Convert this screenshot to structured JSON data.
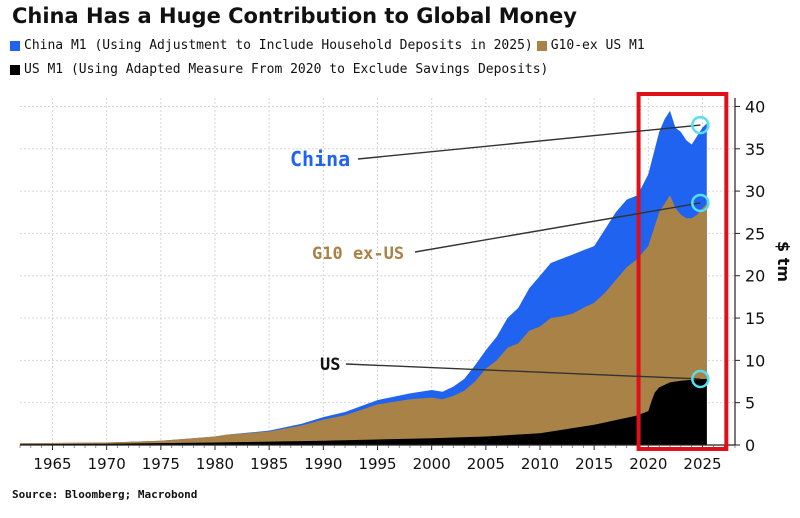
{
  "colors": {
    "china": "#1f63f0",
    "g10": "#a98248",
    "us": "#000000",
    "highlight": "#e0101a",
    "marker": "#55dff0"
  },
  "chart_data": {
    "type": "area",
    "title": "China Has a Huge Contribution to Global Money",
    "stacked": true,
    "xlim": [
      1962,
      2028
    ],
    "ylim": [
      0,
      41
    ],
    "ylabel": "$ tm",
    "x_ticks": [
      "1965",
      "1970",
      "1975",
      "1980",
      "1985",
      "1990",
      "1995",
      "2000",
      "2005",
      "2010",
      "2015",
      "2020",
      "2025"
    ],
    "y_ticks": [
      "0",
      "5",
      "10",
      "15",
      "20",
      "25",
      "30",
      "35",
      "40"
    ],
    "y_axis_side": "right",
    "grid": true,
    "legend_position": "top",
    "legend": [
      {
        "key": "china",
        "label": "China M1 (Using Adjustment to Include Household Deposits in 2025)"
      },
      {
        "key": "g10",
        "label": "G10-ex US M1"
      },
      {
        "key": "us",
        "label": "US M1 (Using Adapted Measure From 2020 to Exclude Savings Deposits)"
      }
    ],
    "series": [
      {
        "key": "us",
        "name": "US",
        "x": [
          1962,
          1970,
          1980,
          1990,
          2000,
          2005,
          2010,
          2015,
          2019,
          2020,
          2020.3,
          2020.6,
          2021,
          2022,
          2023,
          2024,
          2025,
          2025.4
        ],
        "cumulative": [
          0.1,
          0.15,
          0.3,
          0.5,
          0.8,
          1.0,
          1.4,
          2.4,
          3.5,
          4.0,
          5.2,
          6.2,
          6.8,
          7.4,
          7.6,
          7.7,
          7.8,
          7.8
        ]
      },
      {
        "key": "g10",
        "name": "G10 ex-US",
        "x": [
          1962,
          1970,
          1975,
          1978,
          1980,
          1981,
          1985,
          1988,
          1990,
          1992,
          1995,
          1998,
          2000,
          2001,
          2002,
          2003,
          2004,
          2005,
          2006,
          2007,
          2008,
          2009,
          2010,
          2011,
          2012,
          2013,
          2014,
          2015,
          2016,
          2017,
          2018,
          2019,
          2020,
          2021,
          2021.5,
          2022,
          2022.5,
          2023,
          2023.5,
          2024,
          2024.5,
          2025,
          2025.4
        ],
        "cumulative": [
          0.2,
          0.3,
          0.5,
          0.8,
          1.0,
          1.2,
          1.6,
          2.3,
          3.0,
          3.5,
          4.8,
          5.4,
          5.6,
          5.4,
          5.8,
          6.4,
          7.5,
          9.0,
          10.0,
          11.5,
          12.0,
          13.5,
          14.0,
          15.0,
          15.2,
          15.5,
          16.2,
          16.8,
          18.0,
          19.5,
          21.0,
          22.0,
          23.5,
          27.5,
          28.5,
          29.5,
          28.0,
          27.2,
          26.8,
          26.8,
          27.2,
          28.0,
          28.5
        ]
      },
      {
        "key": "china",
        "name": "China",
        "x": [
          1962,
          1970,
          1975,
          1978,
          1980,
          1981,
          1985,
          1988,
          1990,
          1992,
          1995,
          1998,
          2000,
          2001,
          2002,
          2003,
          2004,
          2005,
          2006,
          2007,
          2008,
          2009,
          2010,
          2011,
          2012,
          2013,
          2014,
          2015,
          2016,
          2017,
          2018,
          2019,
          2020,
          2021,
          2021.5,
          2022,
          2022.5,
          2023,
          2023.5,
          2024,
          2024.5,
          2025,
          2025.4
        ],
        "cumulative": [
          0.2,
          0.3,
          0.5,
          0.8,
          1.0,
          1.2,
          1.7,
          2.5,
          3.3,
          3.9,
          5.3,
          6.1,
          6.5,
          6.3,
          6.9,
          7.8,
          9.4,
          11.2,
          12.8,
          15.0,
          16.2,
          18.5,
          20.0,
          21.5,
          22.0,
          22.5,
          23.0,
          23.5,
          25.5,
          27.5,
          29.0,
          29.5,
          32.0,
          37.0,
          38.5,
          39.5,
          37.5,
          37.0,
          36.0,
          35.5,
          36.5,
          37.5,
          38.0
        ]
      }
    ],
    "annotations": [
      {
        "key": "china",
        "label": "China",
        "end": [
          2024.8,
          37.8
        ]
      },
      {
        "key": "g10",
        "label": "G10 ex-US",
        "end": [
          2024.8,
          28.6
        ]
      },
      {
        "key": "us",
        "label": "US",
        "end": [
          2024.8,
          7.8
        ]
      }
    ],
    "highlight_range": [
      2019.1,
      2027.2
    ]
  },
  "source": "Source: Bloomberg; Macrobond"
}
